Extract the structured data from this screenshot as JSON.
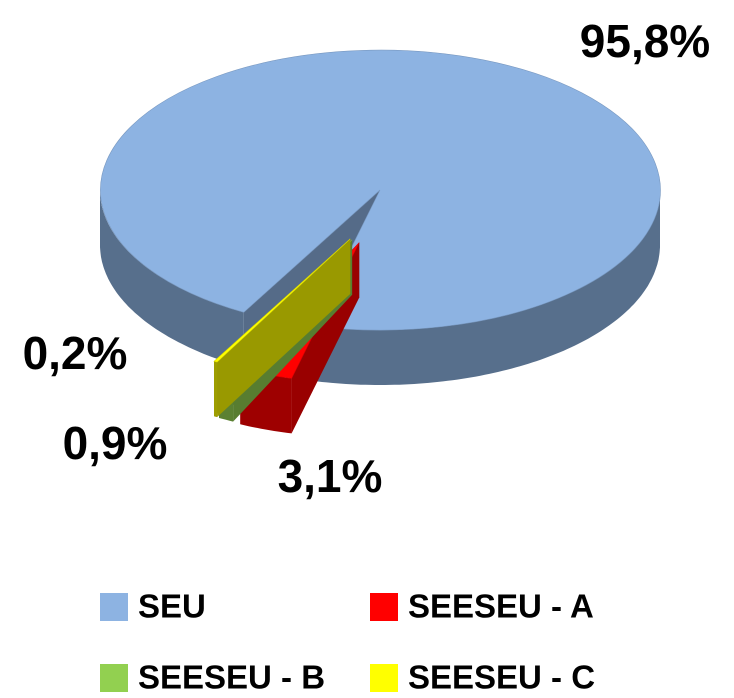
{
  "chart_data": {
    "type": "pie",
    "categories": [
      "SEU",
      "SEESEU - A",
      "SEESEU - B",
      "SEESEU - C"
    ],
    "values": [
      95.8,
      3.1,
      0.9,
      0.2
    ],
    "value_labels": [
      "95,8%",
      "3,1%",
      "0,9%",
      "0,2%"
    ],
    "colors": [
      "#8db3e2",
      "#ff0000",
      "#92d050",
      "#ffff00"
    ],
    "legend": "bottom"
  }
}
